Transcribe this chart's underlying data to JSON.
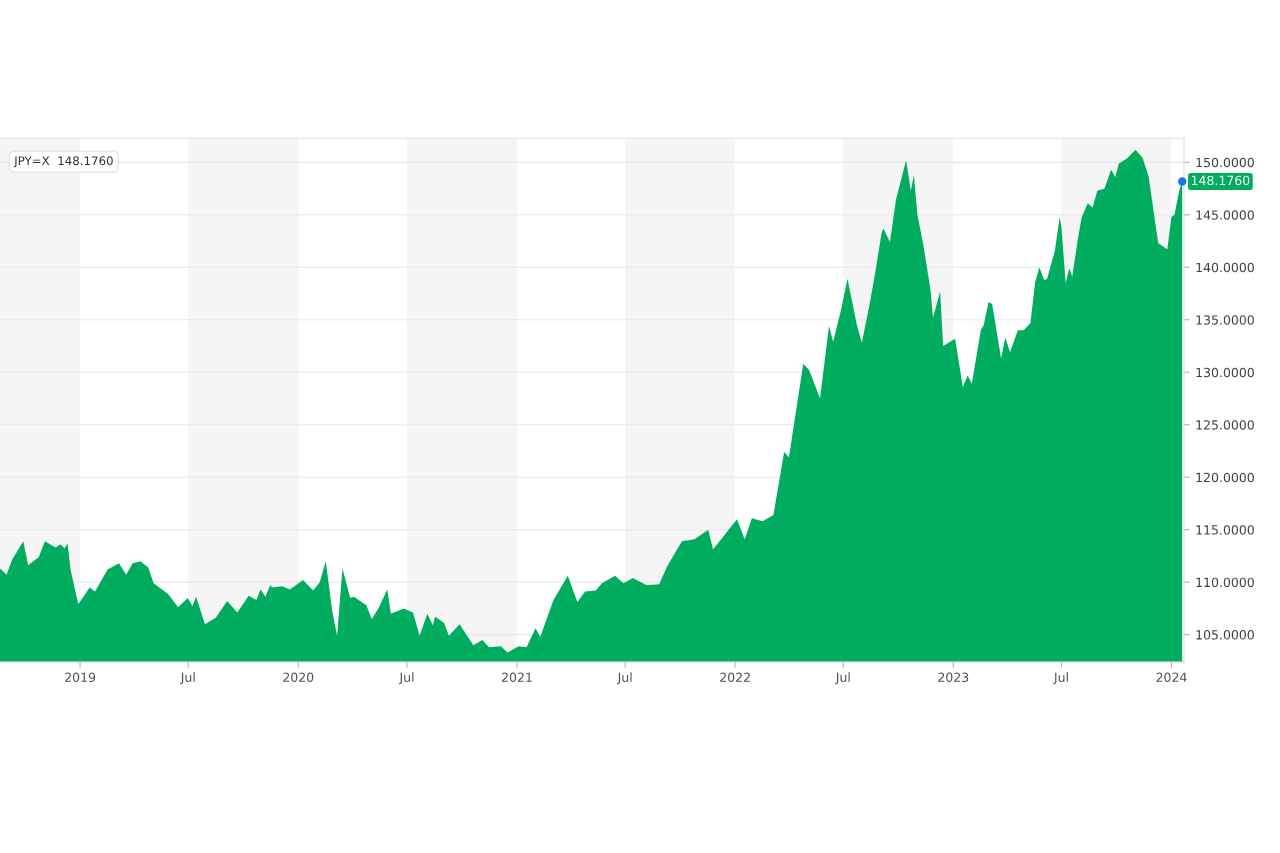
{
  "chart_data": {
    "type": "area",
    "x": [
      "2018-08-20",
      "2018-08-31",
      "2018-09-09",
      "2018-09-28",
      "2018-10-06",
      "2018-10-24",
      "2018-11-03",
      "2018-11-21",
      "2018-11-29",
      "2018-12-06",
      "2018-12-11",
      "2018-12-16",
      "2018-12-29",
      "2019-01-17",
      "2019-01-26",
      "2019-02-16",
      "2019-03-07",
      "2019-03-19",
      "2019-03-30",
      "2019-04-12",
      "2019-04-25",
      "2019-05-04",
      "2019-05-28",
      "2019-06-14",
      "2019-06-30",
      "2019-07-08",
      "2019-07-14",
      "2019-07-29",
      "2019-08-16",
      "2019-09-04",
      "2019-09-21",
      "2019-10-10",
      "2019-10-23",
      "2019-10-30",
      "2019-11-07",
      "2019-11-15",
      "2019-11-19",
      "2019-12-05",
      "2019-12-18",
      "2020-01-09",
      "2020-01-26",
      "2020-02-06",
      "2020-02-16",
      "2020-02-27",
      "2020-03-06",
      "2020-03-15",
      "2020-03-28",
      "2020-04-03",
      "2020-04-24",
      "2020-05-03",
      "2020-05-14",
      "2020-05-29",
      "2020-06-04",
      "2020-06-26",
      "2020-06-29",
      "2020-07-11",
      "2020-07-22",
      "2020-08-04",
      "2020-08-13",
      "2020-08-17",
      "2020-09-01",
      "2020-09-09",
      "2020-09-27",
      "2020-10-20",
      "2020-11-04",
      "2020-11-15",
      "2020-12-05",
      "2020-12-16",
      "2021-01-04",
      "2021-01-17",
      "2021-02-01",
      "2021-02-09",
      "2021-03-03",
      "2021-03-27",
      "2021-04-12",
      "2021-04-25",
      "2021-05-13",
      "2021-05-23",
      "2021-06-14",
      "2021-06-28",
      "2021-07-14",
      "2021-08-06",
      "2021-08-27",
      "2021-09-09",
      "2021-10-04",
      "2021-10-25",
      "2021-11-17",
      "2021-11-25",
      "2022-01-04",
      "2022-01-17",
      "2022-01-29",
      "2022-02-16",
      "2022-03-06",
      "2022-03-16",
      "2022-03-24",
      "2022-04-01",
      "2022-04-25",
      "2022-05-05",
      "2022-05-23",
      "2022-06-07",
      "2022-06-14",
      "2022-06-27",
      "2022-07-08",
      "2022-07-24",
      "2022-08-01",
      "2022-08-13",
      "2022-08-24",
      "2022-09-03",
      "2022-09-06",
      "2022-09-17",
      "2022-09-27",
      "2022-10-14",
      "2022-10-22",
      "2022-10-27",
      "2022-11-02",
      "2022-11-12",
      "2022-11-24",
      "2022-11-28",
      "2022-12-10",
      "2022-12-15",
      "2023-01-04",
      "2023-01-17",
      "2023-01-25",
      "2023-02-01",
      "2023-02-16",
      "2023-02-21",
      "2023-03-01",
      "2023-03-07",
      "2023-03-22",
      "2023-03-29",
      "2023-04-06",
      "2023-04-19",
      "2023-04-29",
      "2023-05-10",
      "2023-05-18",
      "2023-05-25",
      "2023-06-02",
      "2023-06-07",
      "2023-06-20",
      "2023-06-28",
      "2023-07-01",
      "2023-07-08",
      "2023-07-14",
      "2023-07-19",
      "2023-07-29",
      "2023-08-04",
      "2023-08-14",
      "2023-08-22",
      "2023-08-30",
      "2023-09-11",
      "2023-09-22",
      "2023-09-29",
      "2023-10-05",
      "2023-10-19",
      "2023-11-02",
      "2023-11-14",
      "2023-11-24",
      "2023-12-05",
      "2023-12-10",
      "2023-12-20",
      "2023-12-25",
      "2024-01-01",
      "2024-01-06",
      "2024-01-14",
      "2024-01-19"
    ],
    "series": [
      {
        "color": "#00ad5f",
        "values": [
          111.3,
          110.7,
          112.1,
          113.9,
          111.6,
          112.4,
          113.9,
          113.3,
          113.6,
          113.2,
          113.7,
          111.2,
          107.9,
          109.5,
          109.1,
          111.2,
          111.8,
          110.7,
          111.8,
          112.0,
          111.4,
          109.9,
          108.9,
          107.6,
          108.5,
          107.7,
          108.6,
          106.0,
          106.6,
          108.2,
          107.1,
          108.7,
          108.3,
          109.3,
          108.6,
          109.7,
          109.5,
          109.6,
          109.3,
          110.2,
          109.2,
          110.0,
          112.0,
          107.2,
          104.9,
          111.3,
          108.5,
          108.6,
          107.8,
          106.5,
          107.5,
          109.3,
          107.0,
          107.5,
          107.4,
          107.1,
          104.9,
          107.0,
          105.9,
          106.7,
          106.1,
          104.9,
          106.0,
          104.0,
          104.5,
          103.8,
          103.9,
          103.3,
          103.9,
          103.8,
          105.6,
          104.8,
          108.3,
          110.6,
          108.1,
          109.1,
          109.2,
          109.9,
          110.6,
          109.9,
          110.4,
          109.7,
          109.8,
          111.5,
          113.9,
          114.1,
          115.0,
          113.1,
          116.0,
          114.1,
          116.1,
          115.8,
          116.4,
          119.7,
          122.4,
          121.9,
          130.8,
          130.2,
          127.5,
          134.4,
          132.9,
          135.9,
          138.9,
          134.4,
          132.8,
          136.2,
          139.7,
          143.3,
          143.7,
          142.4,
          146.4,
          150.2,
          147.3,
          148.8,
          145.0,
          142.1,
          137.8,
          135.2,
          137.7,
          132.5,
          133.2,
          128.6,
          129.7,
          128.9,
          134.0,
          134.5,
          136.7,
          136.5,
          131.3,
          133.3,
          131.9,
          134.0,
          134.0,
          134.7,
          138.6,
          140.0,
          138.8,
          138.9,
          141.6,
          144.8,
          143.8,
          138.5,
          139.9,
          139.1,
          142.9,
          144.8,
          146.1,
          145.7,
          147.3,
          147.5,
          149.3,
          148.6,
          149.9,
          150.4,
          151.2,
          150.4,
          148.6,
          144.2,
          142.3,
          141.9,
          141.7,
          144.8,
          145.0,
          147.3,
          148.2
        ]
      }
    ],
    "xlim": [
      "2018-08-20",
      "2024-01-22"
    ],
    "ylim": [
      102.4,
      152.3
    ],
    "xticks": [
      {
        "value": "2019-01-01",
        "label": "2019"
      },
      {
        "value": "2019-07-01",
        "label": "Jul"
      },
      {
        "value": "2020-01-01",
        "label": "2020"
      },
      {
        "value": "2020-07-01",
        "label": "Jul"
      },
      {
        "value": "2021-01-01",
        "label": "2021"
      },
      {
        "value": "2021-07-01",
        "label": "Jul"
      },
      {
        "value": "2022-01-01",
        "label": "2022"
      },
      {
        "value": "2022-07-01",
        "label": "Jul"
      },
      {
        "value": "2023-01-01",
        "label": "2023"
      },
      {
        "value": "2023-07-01",
        "label": "Jul"
      },
      {
        "value": "2024-01-01",
        "label": "2024"
      }
    ],
    "yticks": [
      {
        "value": 105,
        "label": "105.0000"
      },
      {
        "value": 110,
        "label": "110.0000"
      },
      {
        "value": 115,
        "label": "115.0000"
      },
      {
        "value": 120,
        "label": "120.0000"
      },
      {
        "value": 125,
        "label": "125.0000"
      },
      {
        "value": 130,
        "label": "130.0000"
      },
      {
        "value": 135,
        "label": "135.0000"
      },
      {
        "value": 140,
        "label": "140.0000"
      },
      {
        "value": 145,
        "label": "145.0000"
      },
      {
        "value": 150,
        "label": "150.0000"
      }
    ],
    "bands": [
      {
        "axis": "x",
        "from": "2018-08-20",
        "to": "2019-01-01",
        "color": "#f5f5f5"
      },
      {
        "axis": "x",
        "from": "2019-07-01",
        "to": "2020-01-01",
        "color": "#f5f5f5"
      },
      {
        "axis": "x",
        "from": "2020-07-01",
        "to": "2021-01-01",
        "color": "#f5f5f5"
      },
      {
        "axis": "x",
        "from": "2021-07-01",
        "to": "2022-01-01",
        "color": "#f5f5f5"
      },
      {
        "axis": "x",
        "from": "2022-07-01",
        "to": "2023-01-01",
        "color": "#f5f5f5"
      },
      {
        "axis": "x",
        "from": "2023-07-01",
        "to": "2024-01-01",
        "color": "#f5f5f5"
      }
    ],
    "grid": "y",
    "annotations": [
      "JPY=X  148.1760",
      {
        "text": "148.1760",
        "x": "2024-01-19",
        "y": 148.176
      }
    ]
  }
}
